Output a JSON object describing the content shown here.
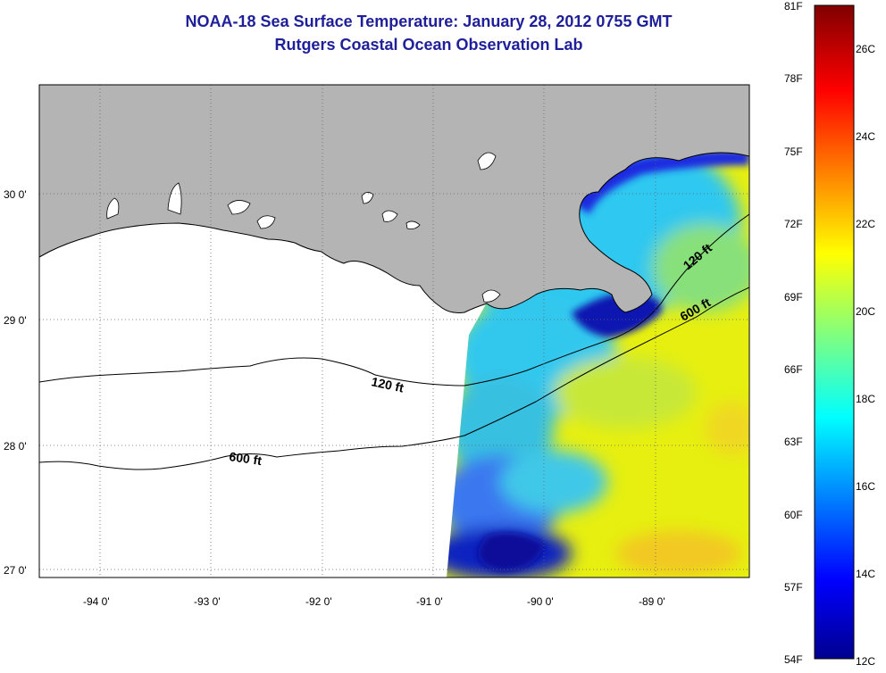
{
  "title_line1": "NOAA-18 Sea Surface Temperature:  January 28, 2012 0755 GMT",
  "title_line2": "Rutgers Coastal Ocean Observation Lab",
  "map": {
    "longitude_ticks": [
      {
        "value": -94,
        "label": "-94 0'"
      },
      {
        "value": -93,
        "label": "-93 0'"
      },
      {
        "value": -92,
        "label": "-92 0'"
      },
      {
        "value": -91,
        "label": "-91 0'"
      },
      {
        "value": -90,
        "label": "-90 0'"
      },
      {
        "value": -89,
        "label": "-89 0'"
      }
    ],
    "latitude_ticks": [
      {
        "value": 30,
        "label": "30 0'"
      },
      {
        "value": 29,
        "label": "29 0'"
      },
      {
        "value": 28,
        "label": "28 0'"
      },
      {
        "value": 27,
        "label": "27 0'"
      }
    ],
    "lon_range": [
      -94.55,
      -88.15
    ],
    "lat_range": [
      26.95,
      30.85
    ],
    "contour_labels": [
      "120 ft",
      "600 ft",
      "120 ft",
      "600 ft"
    ],
    "land_color": "#b4b4b4",
    "grid": "dotted"
  },
  "colorbar": {
    "fahrenheit_labels": [
      "81F",
      "78F",
      "75F",
      "72F",
      "69F",
      "66F",
      "63F",
      "60F",
      "57F",
      "54F"
    ],
    "celsius_labels": [
      "26C",
      "24C",
      "22C",
      "20C",
      "18C",
      "16C",
      "14C",
      "12C"
    ],
    "range_f": [
      54,
      81
    ],
    "range_c": [
      12,
      27.2
    ]
  }
}
